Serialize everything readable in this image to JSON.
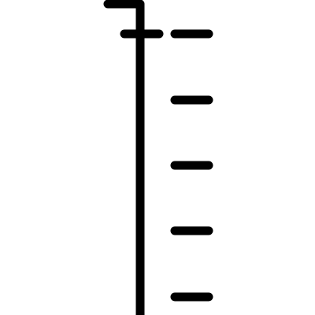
{
  "icon": {
    "name": "ruler-scale-icon",
    "stroke_color": "#000000",
    "background_color": "#ffffff"
  }
}
